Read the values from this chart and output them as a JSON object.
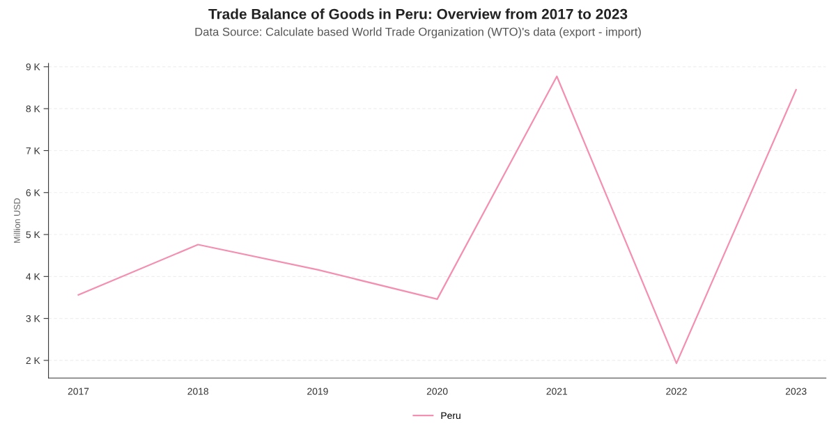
{
  "chart_data": {
    "type": "line",
    "title": "Trade Balance of Goods in Peru: Overview from 2017 to 2023",
    "subtitle": "Data Source: Calculate based World Trade Organization (WTO)'s data (export - import)",
    "ylabel": "Million USD",
    "categories": [
      "2017",
      "2018",
      "2019",
      "2020",
      "2021",
      "2022",
      "2023"
    ],
    "series": [
      {
        "name": "Peru",
        "color": "#f48fb1",
        "values": [
          3560,
          4760,
          4160,
          3460,
          8770,
          1930,
          8450
        ]
      }
    ],
    "ylim": [
      1580,
      9080
    ],
    "yticks": [
      {
        "value": 2000,
        "label": "2 K"
      },
      {
        "value": 3000,
        "label": "3 K"
      },
      {
        "value": 4000,
        "label": "4 K"
      },
      {
        "value": 5000,
        "label": "5 K"
      },
      {
        "value": 6000,
        "label": "6 K"
      },
      {
        "value": 7000,
        "label": "7 K"
      },
      {
        "value": 8000,
        "label": "8 K"
      },
      {
        "value": 9000,
        "label": "9 K"
      }
    ],
    "grid": "y",
    "legend": "bottom",
    "marker": "none",
    "line_style": "solid"
  }
}
